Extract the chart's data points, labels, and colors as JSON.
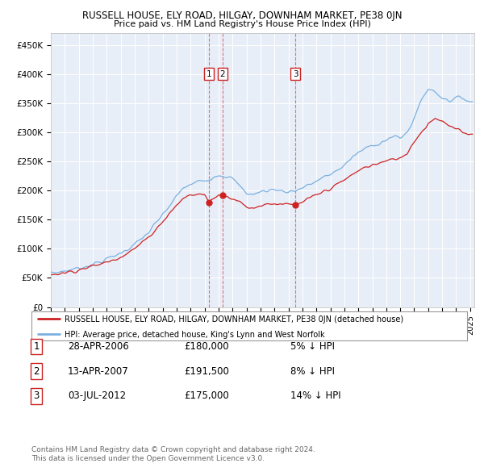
{
  "title": "RUSSELL HOUSE, ELY ROAD, HILGAY, DOWNHAM MARKET, PE38 0JN",
  "subtitle": "Price paid vs. HM Land Registry's House Price Index (HPI)",
  "ylabel_ticks": [
    "£0",
    "£50K",
    "£100K",
    "£150K",
    "£200K",
    "£250K",
    "£300K",
    "£350K",
    "£400K",
    "£450K"
  ],
  "ytick_values": [
    0,
    50000,
    100000,
    150000,
    200000,
    250000,
    300000,
    350000,
    400000,
    450000
  ],
  "ylim": [
    0,
    470000
  ],
  "xlim_start": 1995.0,
  "xlim_end": 2025.3,
  "hpi_color": "#7ab0e0",
  "price_color": "#cc2222",
  "sales": [
    {
      "label": "1",
      "date_num": 2006.32,
      "price": 180000
    },
    {
      "label": "2",
      "date_num": 2007.28,
      "price": 191500
    },
    {
      "label": "3",
      "date_num": 2012.5,
      "price": 175000
    }
  ],
  "legend_house_label": "RUSSELL HOUSE, ELY ROAD, HILGAY, DOWNHAM MARKET, PE38 0JN (detached house)",
  "legend_hpi_label": "HPI: Average price, detached house, King's Lynn and West Norfolk",
  "footer1": "Contains HM Land Registry data © Crown copyright and database right 2024.",
  "footer2": "This data is licensed under the Open Government Licence v3.0.",
  "table_rows": [
    {
      "num": "1",
      "date": "28-APR-2006",
      "price": "£180,000",
      "rel": "5% ↓ HPI"
    },
    {
      "num": "2",
      "date": "13-APR-2007",
      "price": "£191,500",
      "rel": "8% ↓ HPI"
    },
    {
      "num": "3",
      "date": "03-JUL-2012",
      "price": "£175,000",
      "rel": "14% ↓ HPI"
    }
  ],
  "plot_bg": "#e8eef8"
}
